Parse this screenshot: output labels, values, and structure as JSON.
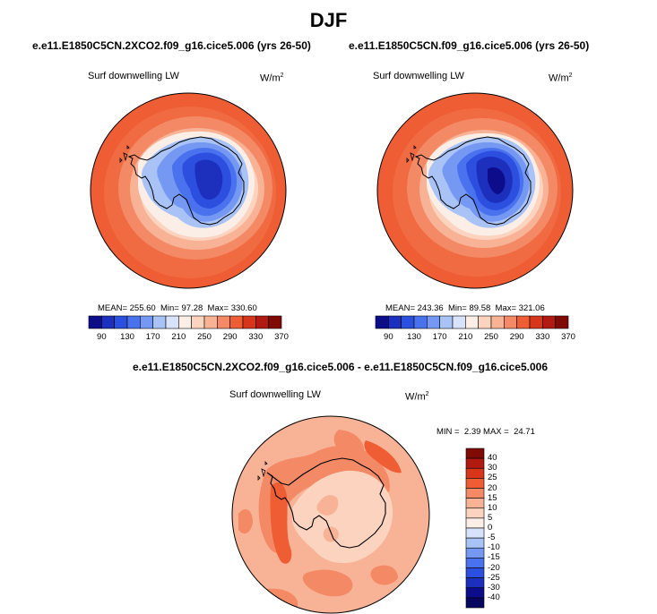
{
  "title": "DJF",
  "colors": {
    "ocean_warm": "#ee5d33",
    "ocean_mid": "#f48a65",
    "ice_edge": "#fbd3bf",
    "antarctic_cold": "#3d65dd",
    "antarctic_deep": "#1638b4",
    "coast": "#000000"
  },
  "panels": [
    {
      "title": "e.e11.E1850C5CN.2XCO2.f09_g16.cice5.006 (yrs 26-50)",
      "variable": "Surf downwelling LW",
      "units": "W/m",
      "units_power": "2",
      "stats": {
        "mean_label": "MEAN=",
        "mean": "255.60",
        "min_label": "Min=",
        "min": "97.28",
        "max_label": "Max=",
        "max": "330.60"
      }
    },
    {
      "title": "e.e11.E1850C5CN.f09_g16.cice5.006 (yrs 26-50)",
      "variable": "Surf downwelling LW",
      "units": "W/m",
      "units_power": "2",
      "stats": {
        "mean_label": "MEAN=",
        "mean": "243.36",
        "min_label": "Min=",
        "min": "89.58",
        "max_label": "Max=",
        "max": "321.06"
      }
    }
  ],
  "abs_colorbar": {
    "labels": [
      "90",
      "130",
      "170",
      "210",
      "250",
      "290",
      "330",
      "370"
    ],
    "colors": [
      "#0d0d8c",
      "#1c2fbd",
      "#2c4fe0",
      "#4a72ee",
      "#7599f2",
      "#a9c3f7",
      "#d6e3fb",
      "#fbeee6",
      "#fbd3bf",
      "#f8b396",
      "#f48a65",
      "#ee5d33",
      "#d7361b",
      "#b01a10",
      "#7f0a06"
    ]
  },
  "diff_panel": {
    "title": "e.e11.E1850C5CN.2XCO2.f09_g16.cice5.006 - e.e11.E1850C5CN.f09_g16.cice5.006",
    "variable": "Surf downwelling LW",
    "units": "W/m",
    "units_power": "2",
    "stats": {
      "min_label": "MIN =",
      "min": "2.39",
      "max_label": "MAX =",
      "max": "24.71"
    }
  },
  "diff_colorbar": {
    "labels": [
      "40",
      "30",
      "25",
      "20",
      "15",
      "10",
      "5",
      "0",
      "-5",
      "-10",
      "-15",
      "-20",
      "-25",
      "-30",
      "-40"
    ],
    "colors": [
      "#7f0a06",
      "#b01a10",
      "#d7361b",
      "#ee5d33",
      "#f48a65",
      "#f8b396",
      "#fbd3bf",
      "#fbeee6",
      "#d6e3fb",
      "#a9c3f7",
      "#7599f2",
      "#4a72ee",
      "#2c4fe0",
      "#1c2fbd",
      "#0d0d8c",
      "#06065e"
    ]
  }
}
